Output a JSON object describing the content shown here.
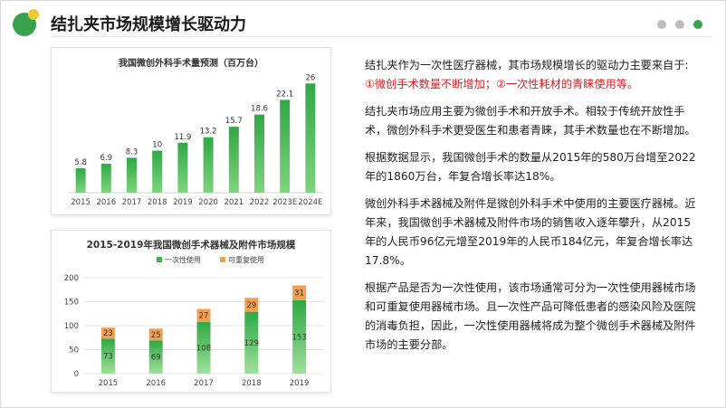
{
  "header": {
    "title": "结扎夹市场规模增长驱动力"
  },
  "text": {
    "p1_line1": "结扎夹作为一次性医疗器械，其市场规模增长的驱动力主要来自于:",
    "p1_line2": "①微创手术数量不断增加；②一次性耗材的青睐使用等。",
    "p2": "结扎夹市场应用主要为微创手术和开放手术。相较于传统开放性手术，微创外科手术更受医生和患者青睐，其手术数量也在不断增加。",
    "p3": "根据数据显示，我国微创手术的数量从2015年的580万台增至2022年的1860万台，年复合增长率达18%。",
    "p4": "微创外科手术器械及附件是微创外科手术中使用的主要医疗器械。近年来，我国微创手术器械及附件市场的销售收入逐年攀升，从2015年的人民币96亿元增至2019年的人民币184亿元，年复合增长率达17.8%。",
    "p5": "根据产品是否为一次性使用，该市场通常可分为一次性使用器械市场和可重复使用器械市场。且一次性产品可降低患者的感染风险及医院的消毒负担，因此，一次性使用器械将成为整个微创手术器械及附件市场的主要分部。"
  },
  "colors": {
    "accent": "#3aa14d",
    "dot_gray": "#bdbdbd",
    "bar_green": "#3cb54a",
    "bar_orange": "#f0a050",
    "red_text": "#d21e1e"
  },
  "chart_data": [
    {
      "type": "bar",
      "title": "我国微创外科手术量预测（百万台）",
      "categories": [
        "2015",
        "2016",
        "2017",
        "2018",
        "2019",
        "2020",
        "2021",
        "2022",
        "2023E",
        "2024E"
      ],
      "values": [
        5.8,
        6.9,
        8.3,
        10,
        11.9,
        13.2,
        15.7,
        18.6,
        22.1,
        26
      ],
      "value_labels": [
        "5.8",
        "6.9",
        "8.3",
        "10",
        "11.9",
        "13.2",
        "15.7",
        "18.6",
        "22.1",
        "26"
      ],
      "ylim": [
        0,
        28
      ],
      "xlabel": "",
      "ylabel": "",
      "grid": false
    },
    {
      "type": "bar",
      "stacked": true,
      "title": "2015-2019年我国微创手术器械及附件市场规模",
      "categories": [
        "2015",
        "2016",
        "2017",
        "2018",
        "2019"
      ],
      "series": [
        {
          "name": "一次性使用",
          "values": [
            73,
            69,
            108,
            129,
            153
          ]
        },
        {
          "name": "可重复使用",
          "values": [
            23,
            25,
            27,
            29,
            31
          ]
        }
      ],
      "yticks": [
        "0",
        "50",
        "100",
        "150",
        "200"
      ],
      "ylim": [
        0,
        200
      ],
      "legend": "top-center",
      "grid": true
    }
  ]
}
